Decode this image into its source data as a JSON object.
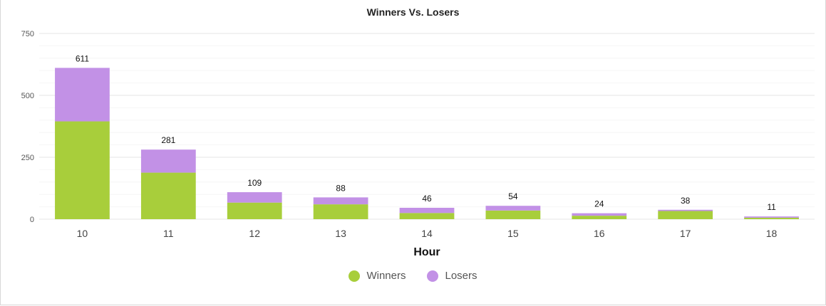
{
  "chart_data": {
    "type": "bar",
    "stacked": true,
    "title": "Winners Vs. Losers",
    "xlabel": "Hour",
    "ylabel": "",
    "categories": [
      "10",
      "11",
      "12",
      "13",
      "14",
      "15",
      "16",
      "17",
      "18"
    ],
    "series": [
      {
        "name": "Winners",
        "color": "#a8ce3b",
        "values": [
          395,
          188,
          67,
          60,
          25,
          35,
          14,
          33,
          6
        ]
      },
      {
        "name": "Losers",
        "color": "#c291e6",
        "values": [
          216,
          93,
          42,
          28,
          21,
          19,
          10,
          5,
          5
        ]
      }
    ],
    "totals": [
      611,
      281,
      109,
      88,
      46,
      54,
      24,
      38,
      11
    ],
    "ylim": [
      0,
      750
    ],
    "yticks": [
      0,
      250,
      500,
      750
    ],
    "grid": true,
    "legend_position": "bottom"
  }
}
